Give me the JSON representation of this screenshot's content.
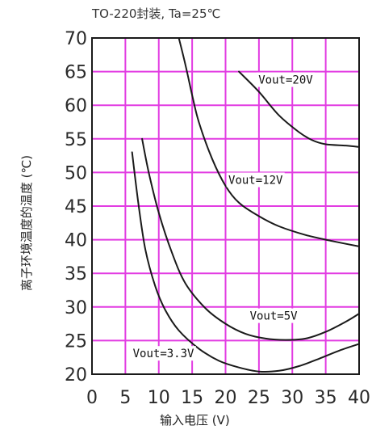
{
  "chart_data": {
    "type": "line",
    "title": "TO-220封装, Ta=25℃",
    "xlabel": "输入电压 (V)",
    "ylabel": "离子环境温度的温度 (℃)",
    "xlim": [
      0,
      40
    ],
    "ylim": [
      20,
      70
    ],
    "xticks": [
      "0",
      "5",
      "10",
      "15",
      "20",
      "25",
      "30",
      "35",
      "40"
    ],
    "yticks": [
      "20",
      "25",
      "30",
      "35",
      "40",
      "45",
      "50",
      "55",
      "60",
      "65",
      "70"
    ],
    "grid": true,
    "colors": {
      "grid": "#e23ce2",
      "curve": "#1a1a1a",
      "frame": "#1a1a1a",
      "background": "#ffffff"
    },
    "series": [
      {
        "name": "Vout=20V",
        "points": [
          [
            22,
            65
          ],
          [
            25,
            62
          ],
          [
            28,
            58.5
          ],
          [
            31,
            56
          ],
          [
            33,
            54.8
          ],
          [
            35,
            54.2
          ],
          [
            38,
            54
          ],
          [
            40,
            53.8
          ]
        ]
      },
      {
        "name": "Vout=12V",
        "points": [
          [
            13,
            70
          ],
          [
            14,
            66
          ],
          [
            15,
            61.5
          ],
          [
            16,
            57.5
          ],
          [
            18,
            52
          ],
          [
            20,
            48
          ],
          [
            22,
            45.5
          ],
          [
            25,
            43.5
          ],
          [
            28,
            42
          ],
          [
            32,
            40.7
          ],
          [
            36,
            39.8
          ],
          [
            40,
            39
          ]
        ]
      },
      {
        "name": "Vout=5V",
        "points": [
          [
            7.5,
            55
          ],
          [
            8.5,
            50
          ],
          [
            10,
            44
          ],
          [
            12,
            38
          ],
          [
            14,
            33.5
          ],
          [
            17,
            29.8
          ],
          [
            20,
            27.5
          ],
          [
            23,
            26
          ],
          [
            26,
            25.3
          ],
          [
            29,
            25.1
          ],
          [
            32,
            25.3
          ],
          [
            35,
            26.3
          ],
          [
            38,
            27.8
          ],
          [
            40,
            29
          ]
        ]
      },
      {
        "name": "Vout=3.3V",
        "points": [
          [
            6,
            53
          ],
          [
            7,
            45
          ],
          [
            8,
            38.5
          ],
          [
            9.5,
            33
          ],
          [
            11,
            29.5
          ],
          [
            13,
            26.5
          ],
          [
            16,
            23.8
          ],
          [
            19,
            22
          ],
          [
            22,
            21
          ],
          [
            25,
            20.4
          ],
          [
            28,
            20.5
          ],
          [
            31,
            21.2
          ],
          [
            34,
            22.3
          ],
          [
            37,
            23.5
          ],
          [
            40,
            24.5
          ]
        ]
      }
    ],
    "annotations": [
      {
        "text": "Vout=20V",
        "series": "Vout=20V",
        "x": 29,
        "y": 63.2
      },
      {
        "text": "Vout=12V",
        "series": "Vout=12V",
        "x": 24.5,
        "y": 48.3
      },
      {
        "text": "Vout=5V",
        "series": "Vout=5V",
        "x": 27.2,
        "y": 28.1
      },
      {
        "text": "Vout=3.3V",
        "series": "Vout=3.3V",
        "x": 10.7,
        "y": 22.5
      }
    ]
  }
}
